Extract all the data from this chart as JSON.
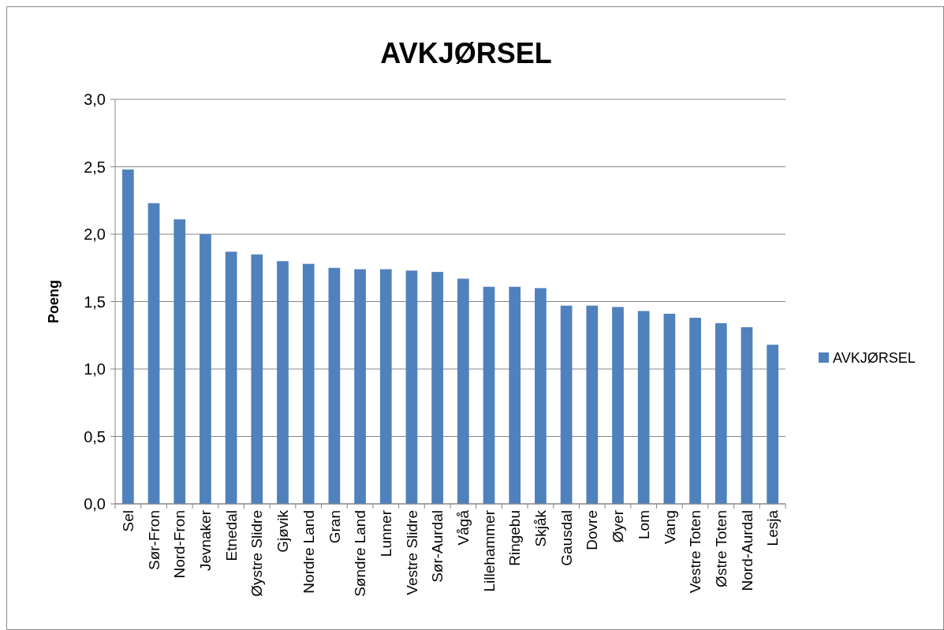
{
  "chart_data": {
    "type": "bar",
    "title": "AVKJØRSEL",
    "ylabel": "Poeng",
    "categories": [
      "Sel",
      "Sør-Fron",
      "Nord-Fron",
      "Jevnaker",
      "Etnedal",
      "Øystre Slidre",
      "Gjøvik",
      "Nordre Land",
      "Gran",
      "Søndre Land",
      "Lunner",
      "Vestre Slidre",
      "Sør-Aurdal",
      "Vågå",
      "Lillehammer",
      "Ringebu",
      "Skjåk",
      "Gausdal",
      "Dovre",
      "Øyer",
      "Lom",
      "Vang",
      "Vestre Toten",
      "Østre Toten",
      "Nord-Aurdal",
      "Lesja"
    ],
    "series": [
      {
        "name": "AVKJØRSEL",
        "color": "#4f81bd",
        "values": [
          2.48,
          2.23,
          2.11,
          2.0,
          1.87,
          1.85,
          1.8,
          1.78,
          1.75,
          1.74,
          1.74,
          1.73,
          1.72,
          1.67,
          1.61,
          1.61,
          1.6,
          1.47,
          1.47,
          1.46,
          1.43,
          1.41,
          1.38,
          1.34,
          1.31,
          1.18
        ]
      }
    ],
    "ylim": [
      0,
      3
    ],
    "yticks": [
      {
        "value": 0,
        "label": "0,0"
      },
      {
        "value": 0.5,
        "label": "0,5"
      },
      {
        "value": 1,
        "label": "1,0"
      },
      {
        "value": 1.5,
        "label": "1,5"
      },
      {
        "value": 2,
        "label": "2,0"
      },
      {
        "value": 2.5,
        "label": "2,5"
      },
      {
        "value": 3,
        "label": "3,0"
      }
    ],
    "grid": "y",
    "legend": "right"
  }
}
